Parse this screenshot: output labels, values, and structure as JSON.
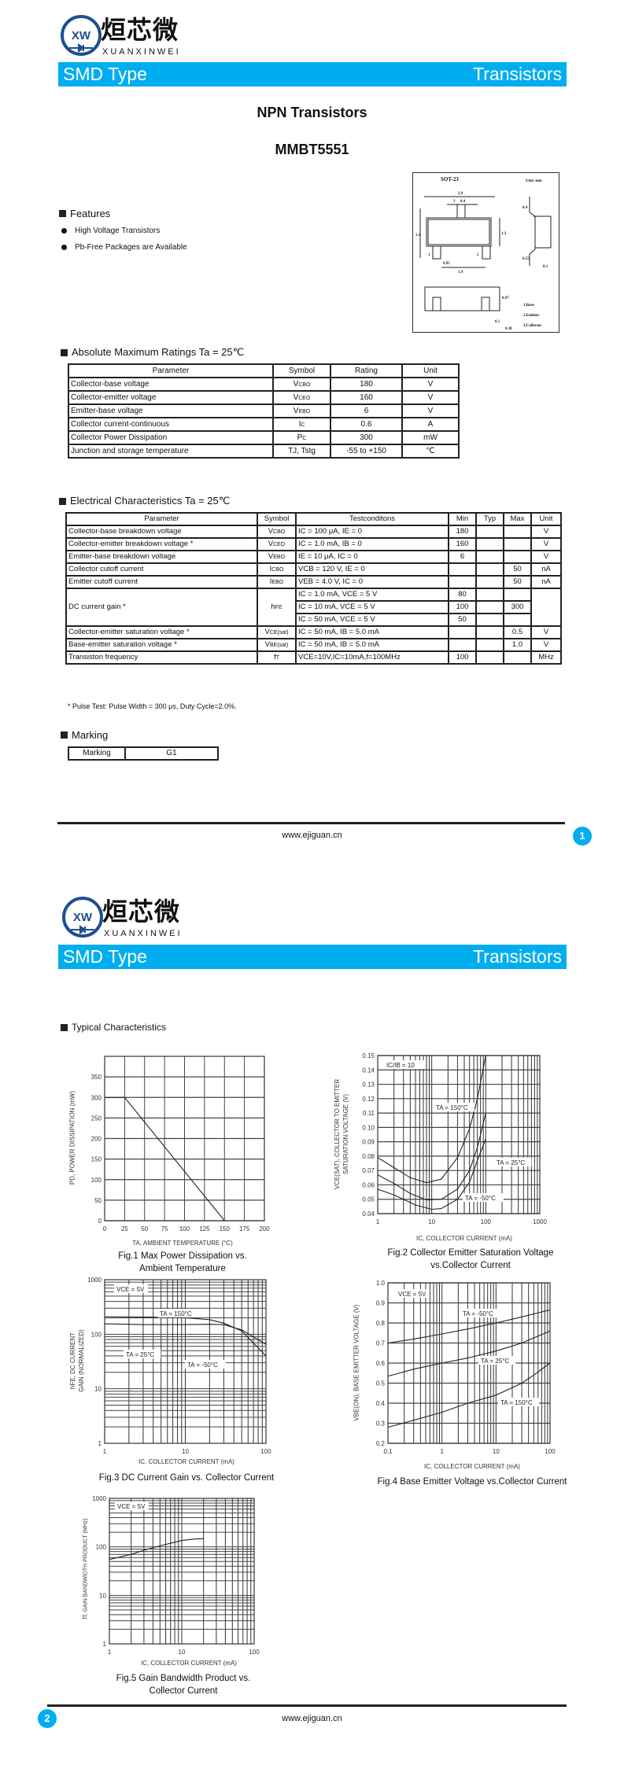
{
  "brand": {
    "logo_cn": "烜芯微",
    "logo_en": "XUANXINWEI",
    "logo_mark": "XW",
    "color": "#00aeef"
  },
  "header": {
    "left": "SMD Type",
    "right": "Transistors"
  },
  "page1": {
    "title": "NPN  Transistors",
    "part": "MMBT5551",
    "features": {
      "heading": "Features",
      "items": [
        "High Voltage Transistors",
        "Pb-Free Packages are Available"
      ]
    },
    "package": {
      "name": "SOT-23",
      "unit": "Unit: mm",
      "pins": [
        "1.Base",
        "2.Emitter",
        "3.Collector"
      ],
      "dims": [
        "2.9",
        "0.4",
        "2.4",
        "1.3",
        "0.95",
        "1.9",
        "0.4",
        "0.55",
        "0.1",
        "0.97",
        "0.1",
        "0.38"
      ]
    },
    "abs_max": {
      "heading": "Absolute Maximum Ratings Ta = 25℃",
      "columns": [
        "Parameter",
        "Symbol",
        "Rating",
        "Unit"
      ],
      "rows": [
        {
          "param": "Collector-base voltage",
          "sym": [
            "V",
            "CBO"
          ],
          "rating": "180",
          "unit": "V"
        },
        {
          "param": "Collector-emitter voltage",
          "sym": [
            "V",
            "CEO"
          ],
          "rating": "160",
          "unit": "V"
        },
        {
          "param": "Emitter-base voltage",
          "sym": [
            "V",
            "EBO"
          ],
          "rating": "6",
          "unit": "V"
        },
        {
          "param": "Collector current-continuous",
          "sym": [
            "I",
            "C"
          ],
          "rating": "0.6",
          "unit": "A"
        },
        {
          "param": "Collector Power Dissipation",
          "sym": [
            "P",
            "C"
          ],
          "rating": "300",
          "unit": "mW"
        },
        {
          "param": "Junction and storage temperature",
          "sym": [
            "TJ, Tstg",
            ""
          ],
          "rating": "-55 to +150",
          "unit": "℃"
        }
      ]
    },
    "elec": {
      "heading": "Electrical Characteristics Ta = 25℃",
      "columns": [
        "Parameter",
        "Symbol",
        "Testconditons",
        "Min",
        "Typ",
        "Max",
        "Unit"
      ],
      "rows": [
        {
          "param": "Collector-base breakdown voltage",
          "sym": [
            "V",
            "CBO"
          ],
          "cond": "IC = 100 μA, IE = 0",
          "min": "180",
          "typ": "",
          "max": "",
          "unit": "V"
        },
        {
          "param": "Collector-emitter breakdown voltage *",
          "sym": [
            "V",
            "CEO"
          ],
          "cond": "IC = 1.0 mA, IB = 0",
          "min": "160",
          "typ": "",
          "max": "",
          "unit": "V"
        },
        {
          "param": "Emitter-base breakdown voltage",
          "sym": [
            "V",
            "EBO"
          ],
          "cond": "IE = 10 μA, IC = 0",
          "min": "6",
          "typ": "",
          "max": "",
          "unit": "V"
        },
        {
          "param": "Collector cutoff current",
          "sym": [
            "I",
            "CBO"
          ],
          "cond": "VCB = 120 V, IE = 0",
          "min": "",
          "typ": "",
          "max": "50",
          "unit": "nA"
        },
        {
          "param": "Emitter cutoff current",
          "sym": [
            "I",
            "EBO"
          ],
          "cond": "VEB = 4.0 V, IC = 0",
          "min": "",
          "typ": "",
          "max": "50",
          "unit": "nA"
        },
        {
          "param": "DC current gain *",
          "sym": [
            "h",
            "FE"
          ],
          "span": 3,
          "unit": "",
          "subrows": [
            {
              "cond": "IC = 1.0 mA, VCE = 5 V",
              "min": "80",
              "typ": "",
              "max": ""
            },
            {
              "cond": "IC = 10 mA, VCE = 5 V",
              "min": "100",
              "typ": "",
              "max": "300"
            },
            {
              "cond": "IC = 50 mA, VCE = 5 V",
              "min": "50",
              "typ": "",
              "max": ""
            }
          ]
        },
        {
          "param": "Collector-emitter saturation voltage *",
          "sym": [
            "V",
            "CE(sat)"
          ],
          "cond": "IC = 50 mA, IB = 5.0 mA",
          "min": "",
          "typ": "",
          "max": "0.5",
          "unit": "V"
        },
        {
          "param": "Base-emitter saturation voltage *",
          "sym": [
            "V",
            "BE(sat)"
          ],
          "cond": "IC = 50 mA, IB = 5.0 mA",
          "min": "",
          "typ": "",
          "max": "1.0",
          "unit": "V"
        },
        {
          "param": "Transiston frequency",
          "sym": [
            "f",
            "T"
          ],
          "cond": "VCE=10V,IC=10mA,f=100MHz",
          "min": "100",
          "typ": "",
          "max": "",
          "unit": "MHz"
        }
      ],
      "footnote": "* Pulse Test: Pulse Width = 300 μs, Duty Cycle=2.0%."
    },
    "marking": {
      "heading": "Marking",
      "label": "Marking",
      "value": "G1"
    },
    "footer": {
      "site": "www.ejiguan.cn",
      "page": "1"
    }
  },
  "page2": {
    "heading": "Typical Characteristics",
    "footer": {
      "site": "www.ejiguan.cn",
      "page": "2"
    }
  },
  "chart_data": [
    {
      "type": "line",
      "title": "Fig.1 Max Power Dissipation vs.",
      "title2": "Ambient Temperature",
      "xlabel": "TA, AMBIENT TEMPERATURE (°C)",
      "ylabel": "PD, POWER DISSIPATION (mW)",
      "xscale": "linear",
      "xlim": [
        0,
        200
      ],
      "xticks": [
        0,
        25,
        50,
        75,
        100,
        125,
        150,
        175,
        200
      ],
      "yscale": "linear",
      "ylim": [
        0,
        400
      ],
      "yticks": [
        0,
        50,
        100,
        150,
        200,
        250,
        300,
        350
      ],
      "grid": true,
      "series": [
        {
          "points": [
            [
              0,
              300
            ],
            [
              25,
              300
            ],
            [
              150,
              0
            ]
          ]
        }
      ],
      "annotations": []
    },
    {
      "type": "line",
      "title": "Fig.2 Collector Emitter Saturation Voltage",
      "title2": "vs.Collector Current",
      "xlabel": "IC, COLLECTOR CURRENT (mA)",
      "ylabel": "VCE(SAT), COLLECTOR TO EMITTER",
      "ylabel2": "SATURATION VOLTAGE (V)",
      "xscale": "log",
      "xlim": [
        1,
        1000
      ],
      "xticks": [
        1,
        10,
        100,
        1000
      ],
      "yscale": "linear",
      "ylim": [
        0.04,
        0.15
      ],
      "yticks": [
        0.04,
        0.05,
        0.06,
        0.07,
        0.08,
        0.09,
        0.1,
        0.11,
        0.12,
        0.13,
        0.14,
        0.15
      ],
      "grid": true,
      "series": [
        {
          "name": "TA = 150°C",
          "points": [
            [
              1,
              0.079
            ],
            [
              2,
              0.072
            ],
            [
              4,
              0.065
            ],
            [
              8,
              0.0615
            ],
            [
              15,
              0.064
            ],
            [
              30,
              0.079
            ],
            [
              50,
              0.099
            ],
            [
              70,
              0.12
            ],
            [
              100,
              0.15
            ]
          ]
        },
        {
          "name": "TA = 25°C",
          "points": [
            [
              1,
              0.067
            ],
            [
              2,
              0.061
            ],
            [
              4,
              0.054
            ],
            [
              8,
              0.0495
            ],
            [
              15,
              0.05
            ],
            [
              30,
              0.057
            ],
            [
              50,
              0.07
            ],
            [
              70,
              0.086
            ],
            [
              100,
              0.11
            ]
          ]
        },
        {
          "name": "TA = -50°C",
          "points": [
            [
              1,
              0.057
            ],
            [
              2,
              0.053
            ],
            [
              5,
              0.046
            ],
            [
              10,
              0.043
            ],
            [
              15,
              0.0435
            ],
            [
              30,
              0.05
            ],
            [
              50,
              0.062
            ],
            [
              70,
              0.077
            ],
            [
              100,
              0.092
            ]
          ]
        }
      ],
      "annotations": [
        "IC/IB = 10",
        "TA = 150°C",
        "TA = 25°C",
        "TA = -50°C"
      ]
    },
    {
      "type": "line",
      "title": "Fig.3 DC Current Gain vs. Collector Current",
      "title2": "",
      "xlabel": "IC, COLLECTOR CURRENT (mA)",
      "ylabel": "hFE, DC CURRENT",
      "ylabel2": "GAIN (NORMALIZED)",
      "xscale": "log",
      "xlim": [
        1,
        100
      ],
      "xticks": [
        1,
        10,
        100
      ],
      "yscale": "log",
      "ylim": [
        1,
        1000
      ],
      "yticks": [
        1,
        10,
        100,
        1000
      ],
      "grid": true,
      "series": [
        {
          "name": "TA = 150°C",
          "points": [
            [
              1,
              210
            ],
            [
              5,
              205
            ],
            [
              10,
              200
            ],
            [
              20,
              185
            ],
            [
              30,
              160
            ],
            [
              50,
              115
            ],
            [
              100,
              40
            ]
          ]
        },
        {
          "name": "TA = 25°C",
          "points": [
            [
              1,
              155
            ],
            [
              3,
              150
            ],
            [
              10,
              150
            ],
            [
              20,
              152
            ],
            [
              30,
              150
            ],
            [
              50,
              120
            ],
            [
              100,
              65
            ]
          ]
        }
      ],
      "annotations": [
        "VCE = 5V",
        "TA = 150°C",
        "TA = 25°C",
        "TA = -50°C"
      ]
    },
    {
      "type": "line",
      "title": "Fig.4 Base Emitter Voltage vs.Collector Current",
      "title2": "",
      "xlabel": "IC, COLLECTOR CURRENT (mA)",
      "ylabel": "VBE(ON), BASE EMITTER VOLTAGE (V)",
      "xscale": "log",
      "xlim": [
        0.1,
        100
      ],
      "xticks": [
        0.1,
        1,
        10,
        100
      ],
      "yscale": "linear",
      "ylim": [
        0.2,
        1.0
      ],
      "yticks": [
        0.2,
        0.3,
        0.4,
        0.5,
        0.6,
        0.7,
        0.8,
        0.9,
        1.0
      ],
      "grid": true,
      "series": [
        {
          "name": "TA = -50°C",
          "points": [
            [
              0.1,
              0.7
            ],
            [
              0.3,
              0.72
            ],
            [
              1,
              0.745
            ],
            [
              3,
              0.77
            ],
            [
              10,
              0.8
            ],
            [
              30,
              0.83
            ],
            [
              100,
              0.865
            ]
          ]
        },
        {
          "name": "TA = 25°C",
          "points": [
            [
              0.1,
              0.535
            ],
            [
              0.3,
              0.57
            ],
            [
              1,
              0.6
            ],
            [
              3,
              0.625
            ],
            [
              10,
              0.66
            ],
            [
              30,
              0.7
            ],
            [
              100,
              0.76
            ]
          ]
        },
        {
          "name": "TA = 150°C",
          "points": [
            [
              0.1,
              0.28
            ],
            [
              0.3,
              0.315
            ],
            [
              1,
              0.355
            ],
            [
              3,
              0.4
            ],
            [
              10,
              0.44
            ],
            [
              30,
              0.5
            ],
            [
              50,
              0.54
            ],
            [
              100,
              0.6
            ]
          ]
        }
      ],
      "annotations": [
        "VCE = 5V",
        "TA = -50°C",
        "TA = 25°C",
        "TA = 150°C"
      ]
    },
    {
      "type": "line",
      "title": "Fig.5 Gain Bandwidth Product vs.",
      "title2": "Collector Current",
      "xlabel": "IC, COLLECTOR CURRENT (mA)",
      "ylabel": "fT, GAIN BANDWIDTH PRODUCT (MHz)",
      "xscale": "log",
      "xlim": [
        1,
        100
      ],
      "xticks": [
        1,
        10,
        100
      ],
      "yscale": "log",
      "ylim": [
        1,
        1000
      ],
      "yticks": [
        1,
        10,
        100,
        1000
      ],
      "grid": true,
      "series": [
        {
          "points": [
            [
              1,
              55
            ],
            [
              2,
              70
            ],
            [
              3,
              85
            ],
            [
              5,
              105
            ],
            [
              10,
              135
            ],
            [
              15,
              145
            ],
            [
              20,
              148
            ]
          ]
        }
      ],
      "annotations": [
        "VCE = 5V"
      ]
    }
  ]
}
